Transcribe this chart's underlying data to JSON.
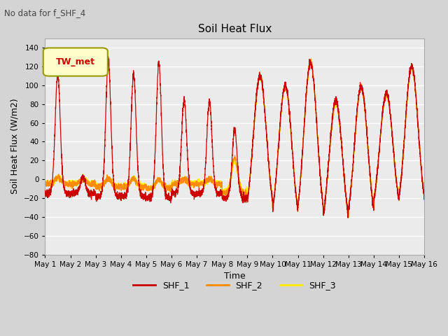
{
  "title": "Soil Heat Flux",
  "ylabel": "Soil Heat Flux (W/m2)",
  "xlabel": "Time",
  "ylim": [
    -80,
    150
  ],
  "yticks": [
    -80,
    -60,
    -40,
    -20,
    0,
    20,
    40,
    60,
    80,
    100,
    120,
    140
  ],
  "annotation": "No data for f_SHF_4",
  "legend_box_label": "TW_met",
  "colors": {
    "SHF_1": "#cc0000",
    "SHF_2": "#ff8c00",
    "SHF_3": "#ffee00"
  },
  "legend_labels": [
    "SHF_1",
    "SHF_2",
    "SHF_3"
  ],
  "fig_bg_color": "#d4d4d4",
  "plot_bg_color": "#ebebeb",
  "num_days": 15,
  "points_per_day": 288
}
